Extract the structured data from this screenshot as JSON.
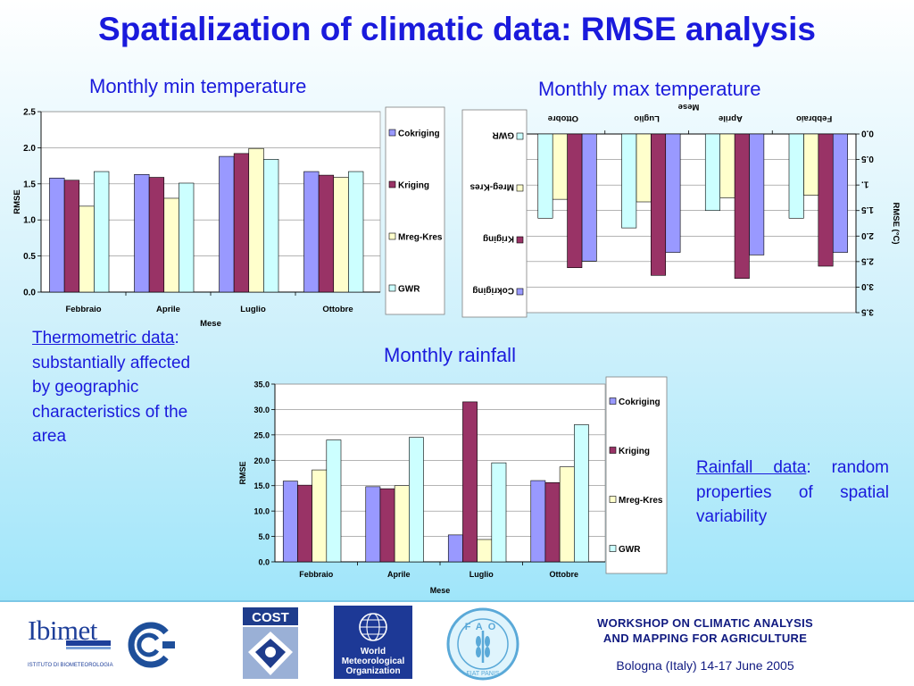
{
  "title": "Spatialization of climatic data: RMSE analysis",
  "captions": {
    "min": "Monthly min temperature",
    "max": "Monthly max temperature",
    "rain": "Monthly rainfall"
  },
  "notes": {
    "thermo_underlined": "Thermometric data",
    "thermo_rest": ": substantially affected by geographic characteristics of the area",
    "rain_underlined": "Rainfall data",
    "rain_rest": ": random properties of spatial variability"
  },
  "footer": {
    "workshop_line1": "WORKSHOP ON CLIMATIC ANALYSIS",
    "workshop_line2": "AND MAPPING FOR AGRICULTURE",
    "venue": "Bologna (Italy) 14-17 June 2005",
    "logos": {
      "ibimet_name": "Ibimet",
      "ibimet_sub": "ISTITUTO DI BIOMETEOROLOGIA",
      "cost": "COST",
      "wmo_line1": "World",
      "wmo_line2": "Meteorological",
      "wmo_line3": "Organization",
      "fao": "FAO",
      "fao_motto": "FIAT PANIS"
    }
  },
  "colors": {
    "cokriging": "#9999ff",
    "kriging": "#993366",
    "mreg": "#ffffcc",
    "gwr": "#ccffff",
    "text_blue": "#1a1adc",
    "footer_blue": "#101a80"
  },
  "chart_data": [
    {
      "id": "min",
      "type": "bar",
      "categories": [
        "Febbraio",
        "Aprile",
        "Luglio",
        "Ottobre"
      ],
      "series": [
        {
          "name": "Cokriging",
          "values": [
            1.58,
            1.63,
            1.88,
            1.67
          ]
        },
        {
          "name": "Kriging",
          "values": [
            1.55,
            1.59,
            1.92,
            1.62
          ]
        },
        {
          "name": "Mreg-Kres",
          "values": [
            1.19,
            1.3,
            1.99,
            1.59
          ]
        },
        {
          "name": "GWR",
          "values": [
            1.67,
            1.51,
            1.84,
            1.67
          ]
        }
      ],
      "xlabel": "Mese",
      "ylabel": "RMSE",
      "ylim": [
        0,
        2.5
      ],
      "yticks": [
        "0.0",
        "0.5",
        "1.0",
        "1.5",
        "2.0",
        "2.5"
      ],
      "grid": true,
      "legend": "right",
      "rotated": false
    },
    {
      "id": "max",
      "type": "bar",
      "categories": [
        "Febbraio",
        "Aprile",
        "Luglio",
        "Ottobre"
      ],
      "series": [
        {
          "name": "Cokriging",
          "values": [
            2.32,
            2.37,
            2.32,
            2.49
          ]
        },
        {
          "name": "Kriging",
          "values": [
            2.59,
            2.83,
            2.77,
            2.62
          ]
        },
        {
          "name": "Mreg-Kres",
          "values": [
            1.2,
            1.25,
            1.33,
            1.28
          ]
        },
        {
          "name": "GWR",
          "values": [
            1.65,
            1.5,
            1.84,
            1.65
          ]
        }
      ],
      "xlabel": "Mese",
      "ylabel": "RMSE (°C)",
      "ylim": [
        0,
        3.5
      ],
      "yticks": [
        "0.0",
        "0.5",
        "1.",
        "1.5",
        "2.0",
        "2.5",
        "3.0",
        "3.5"
      ],
      "grid": true,
      "legend": "right",
      "rotated": true
    },
    {
      "id": "rain",
      "type": "bar",
      "categories": [
        "Febbraio",
        "Aprile",
        "Luglio",
        "Ottobre"
      ],
      "series": [
        {
          "name": "Cokriging",
          "values": [
            15.9,
            14.8,
            5.3,
            16.0
          ]
        },
        {
          "name": "Kriging",
          "values": [
            15.1,
            14.4,
            31.5,
            15.6
          ]
        },
        {
          "name": "Mreg-Kres",
          "values": [
            18.1,
            15.0,
            4.4,
            18.7
          ]
        },
        {
          "name": "GWR",
          "values": [
            24.0,
            24.5,
            19.5,
            27.0
          ]
        }
      ],
      "xlabel": "Mese",
      "ylabel": "RMSE",
      "ylim": [
        0,
        35
      ],
      "yticks": [
        "0.0",
        "5.0",
        "10.0",
        "15.0",
        "20.0",
        "25.0",
        "30.0",
        "35.0"
      ],
      "grid": true,
      "legend": "right",
      "rotated": false
    }
  ]
}
